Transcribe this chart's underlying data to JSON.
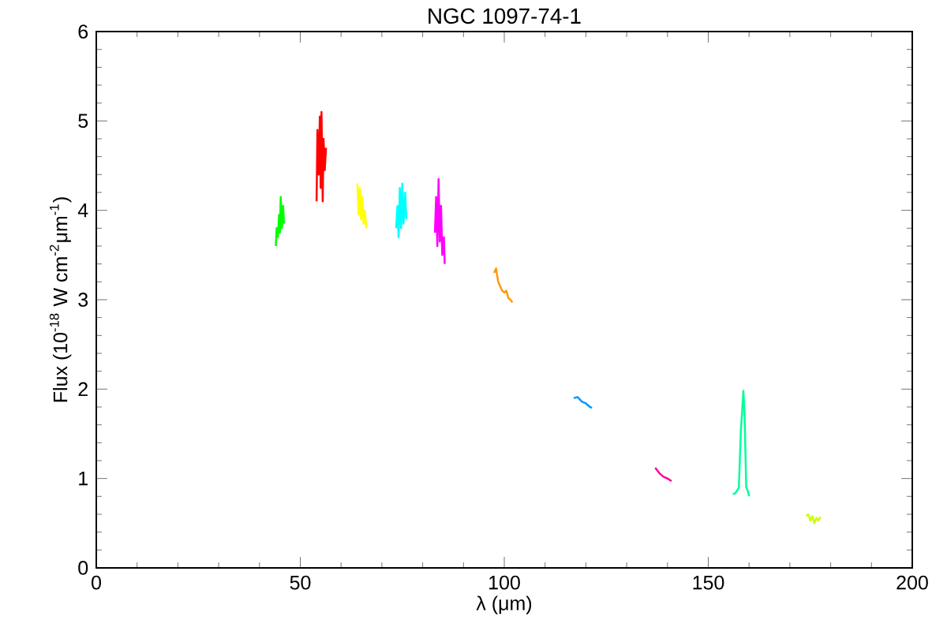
{
  "chart_data": {
    "type": "line",
    "title": "NGC 1097-74-1",
    "xlabel": "λ (μm)",
    "ylabel": "Flux (10$^{-18}$ W cm$^{-2}$μm$^{-1}$)",
    "xlim": [
      0,
      200
    ],
    "ylim": [
      0,
      6
    ],
    "xticks": [
      0,
      50,
      100,
      150,
      200
    ],
    "yticks": [
      0,
      1,
      2,
      3,
      4,
      5,
      6
    ],
    "grid": false,
    "marker": "none",
    "line_style": "solid",
    "series": [
      {
        "color": "#00ff00",
        "x": [
          44.0,
          44.2,
          44.5,
          44.8,
          45.0,
          45.2,
          45.5,
          45.8,
          46.0
        ],
        "values": [
          3.6,
          3.8,
          3.7,
          3.95,
          3.75,
          4.15,
          3.8,
          4.05,
          3.85
        ]
      },
      {
        "color": "#ff0000",
        "x": [
          54.0,
          54.2,
          54.5,
          54.8,
          55.0,
          55.2,
          55.5,
          55.7,
          56.0,
          56.3
        ],
        "values": [
          4.1,
          4.9,
          4.4,
          5.05,
          4.25,
          5.1,
          4.1,
          4.8,
          4.45,
          4.7
        ]
      },
      {
        "color": "#ffff00",
        "x": [
          64.0,
          64.3,
          64.6,
          64.9,
          65.2,
          65.5,
          65.8,
          66.2
        ],
        "values": [
          4.3,
          3.95,
          4.25,
          3.9,
          4.15,
          3.85,
          4.0,
          3.8
        ]
      },
      {
        "color": "#00ffff",
        "x": [
          73.5,
          73.8,
          74.1,
          74.4,
          74.7,
          75.0,
          75.3,
          75.7,
          76.0
        ],
        "values": [
          3.8,
          4.05,
          3.7,
          4.25,
          3.8,
          4.3,
          3.85,
          4.2,
          3.9
        ]
      },
      {
        "color": "#ff00ff",
        "x": [
          83.0,
          83.3,
          83.6,
          83.9,
          84.2,
          84.5,
          84.8,
          85.2,
          85.4
        ],
        "values": [
          3.75,
          4.15,
          3.6,
          4.35,
          3.65,
          4.05,
          3.5,
          3.7,
          3.4
        ]
      },
      {
        "color": "#ff9900",
        "x": [
          97.5,
          98.0,
          98.5,
          99.0,
          99.5,
          100.0,
          100.5,
          101.0,
          101.5,
          102.0
        ],
        "values": [
          3.3,
          3.35,
          3.2,
          3.15,
          3.1,
          3.08,
          3.1,
          3.02,
          3.0,
          2.97
        ]
      },
      {
        "color": "#0099ff",
        "x": [
          117.0,
          118.0,
          119.0,
          120.0,
          121.0,
          121.5
        ],
        "values": [
          1.9,
          1.91,
          1.86,
          1.84,
          1.8,
          1.79
        ]
      },
      {
        "color": "#ff0099",
        "x": [
          137.0,
          138.0,
          139.0,
          140.0,
          141.0
        ],
        "values": [
          1.12,
          1.06,
          1.02,
          1.0,
          0.97
        ]
      },
      {
        "color": "#00ff99",
        "x": [
          156.0,
          156.5,
          157.0,
          157.5,
          158.0,
          158.3,
          158.6,
          158.9,
          159.3,
          159.7,
          160.0
        ],
        "values": [
          0.83,
          0.83,
          0.86,
          0.9,
          1.55,
          1.75,
          1.98,
          1.72,
          0.9,
          0.86,
          0.8
        ]
      },
      {
        "color": "#ccff00",
        "x": [
          174.0,
          174.5,
          175.0,
          175.5,
          176.0,
          176.5,
          177.0,
          177.5
        ],
        "values": [
          0.58,
          0.6,
          0.53,
          0.58,
          0.5,
          0.56,
          0.53,
          0.57
        ]
      }
    ]
  }
}
